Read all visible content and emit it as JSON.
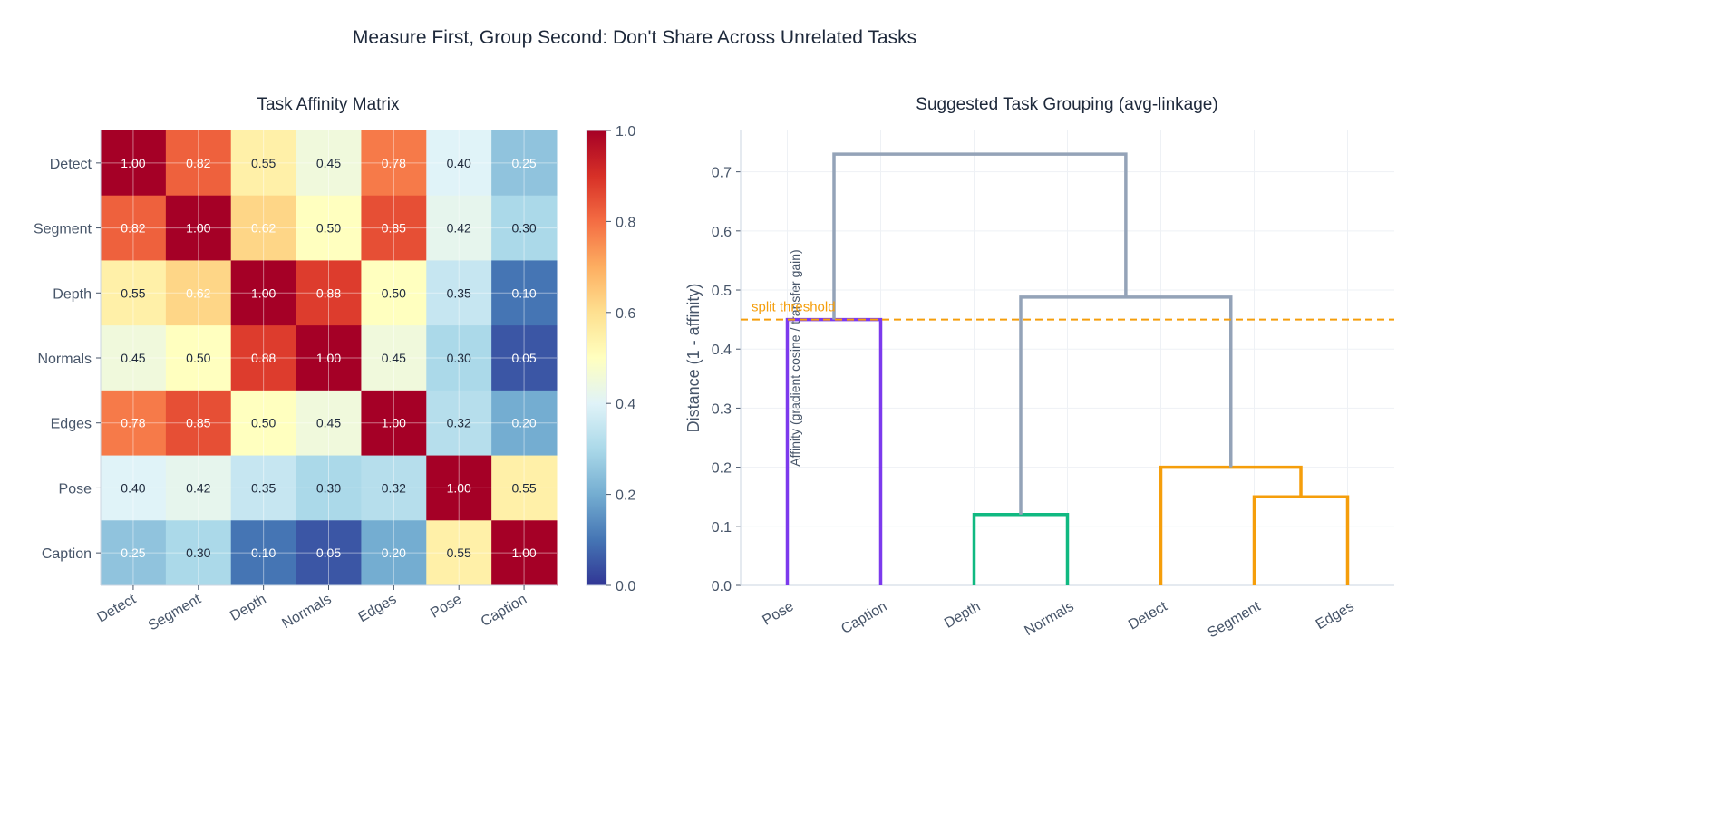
{
  "suptitle": "Measure First, Group Second: Don't Share Across Unrelated Tasks",
  "chart_data": [
    {
      "type": "heatmap",
      "title": "Task Affinity Matrix",
      "rows": [
        "Detect",
        "Segment",
        "Depth",
        "Normals",
        "Edges",
        "Pose",
        "Caption"
      ],
      "cols": [
        "Detect",
        "Segment",
        "Depth",
        "Normals",
        "Edges",
        "Pose",
        "Caption"
      ],
      "values": [
        [
          1.0,
          0.82,
          0.55,
          0.45,
          0.78,
          0.4,
          0.25
        ],
        [
          0.82,
          1.0,
          0.62,
          0.5,
          0.85,
          0.42,
          0.3
        ],
        [
          0.55,
          0.62,
          1.0,
          0.88,
          0.5,
          0.35,
          0.1
        ],
        [
          0.45,
          0.5,
          0.88,
          1.0,
          0.45,
          0.3,
          0.05
        ],
        [
          0.78,
          0.85,
          0.5,
          0.45,
          1.0,
          0.32,
          0.2
        ],
        [
          0.4,
          0.42,
          0.35,
          0.3,
          0.32,
          1.0,
          0.55
        ],
        [
          0.25,
          0.3,
          0.1,
          0.05,
          0.2,
          0.55,
          1.0
        ]
      ],
      "colormap": "RdYlBu_r",
      "vmin": 0,
      "vmax": 1,
      "colorbar": {
        "label": "Affinity (gradient cosine / transfer gain)",
        "ticks": [
          "0.0",
          "0.2",
          "0.4",
          "0.6",
          "0.8",
          "1.0"
        ]
      },
      "grid": true
    },
    {
      "type": "dendrogram",
      "title": "Suggested Task Grouping (avg-linkage)",
      "ylabel": "Distance  (1 - affinity)",
      "ylim": [
        0,
        0.77
      ],
      "yticks": [
        "0.0",
        "0.1",
        "0.2",
        "0.3",
        "0.4",
        "0.5",
        "0.6",
        "0.7"
      ],
      "leaves": [
        "Pose",
        "Caption",
        "Depth",
        "Normals",
        "Detect",
        "Segment",
        "Edges"
      ],
      "merges": [
        {
          "left": "Pose",
          "right": "Caption",
          "height": 0.45,
          "color": "#7c3aed"
        },
        {
          "left": "Depth",
          "right": "Normals",
          "height": 0.12,
          "color": "#10b981"
        },
        {
          "left": "Segment",
          "right": "Edges",
          "height": 0.15,
          "color": "#f59e0b"
        },
        {
          "left": "Detect",
          "right": "Segment+Edges",
          "height": 0.2,
          "color": "#f59e0b"
        },
        {
          "left": "Depth+Normals",
          "right": "Detect+Segment+Edges",
          "height": 0.488,
          "color": "#94a3b8"
        },
        {
          "left": "Pose+Caption",
          "right": "Depth+Normals+Detect+Segment+Edges",
          "height": 0.73,
          "color": "#94a3b8"
        }
      ],
      "threshold": {
        "value": 0.45,
        "label": "split threshold",
        "color": "#f59e0b"
      },
      "grid": true
    }
  ]
}
